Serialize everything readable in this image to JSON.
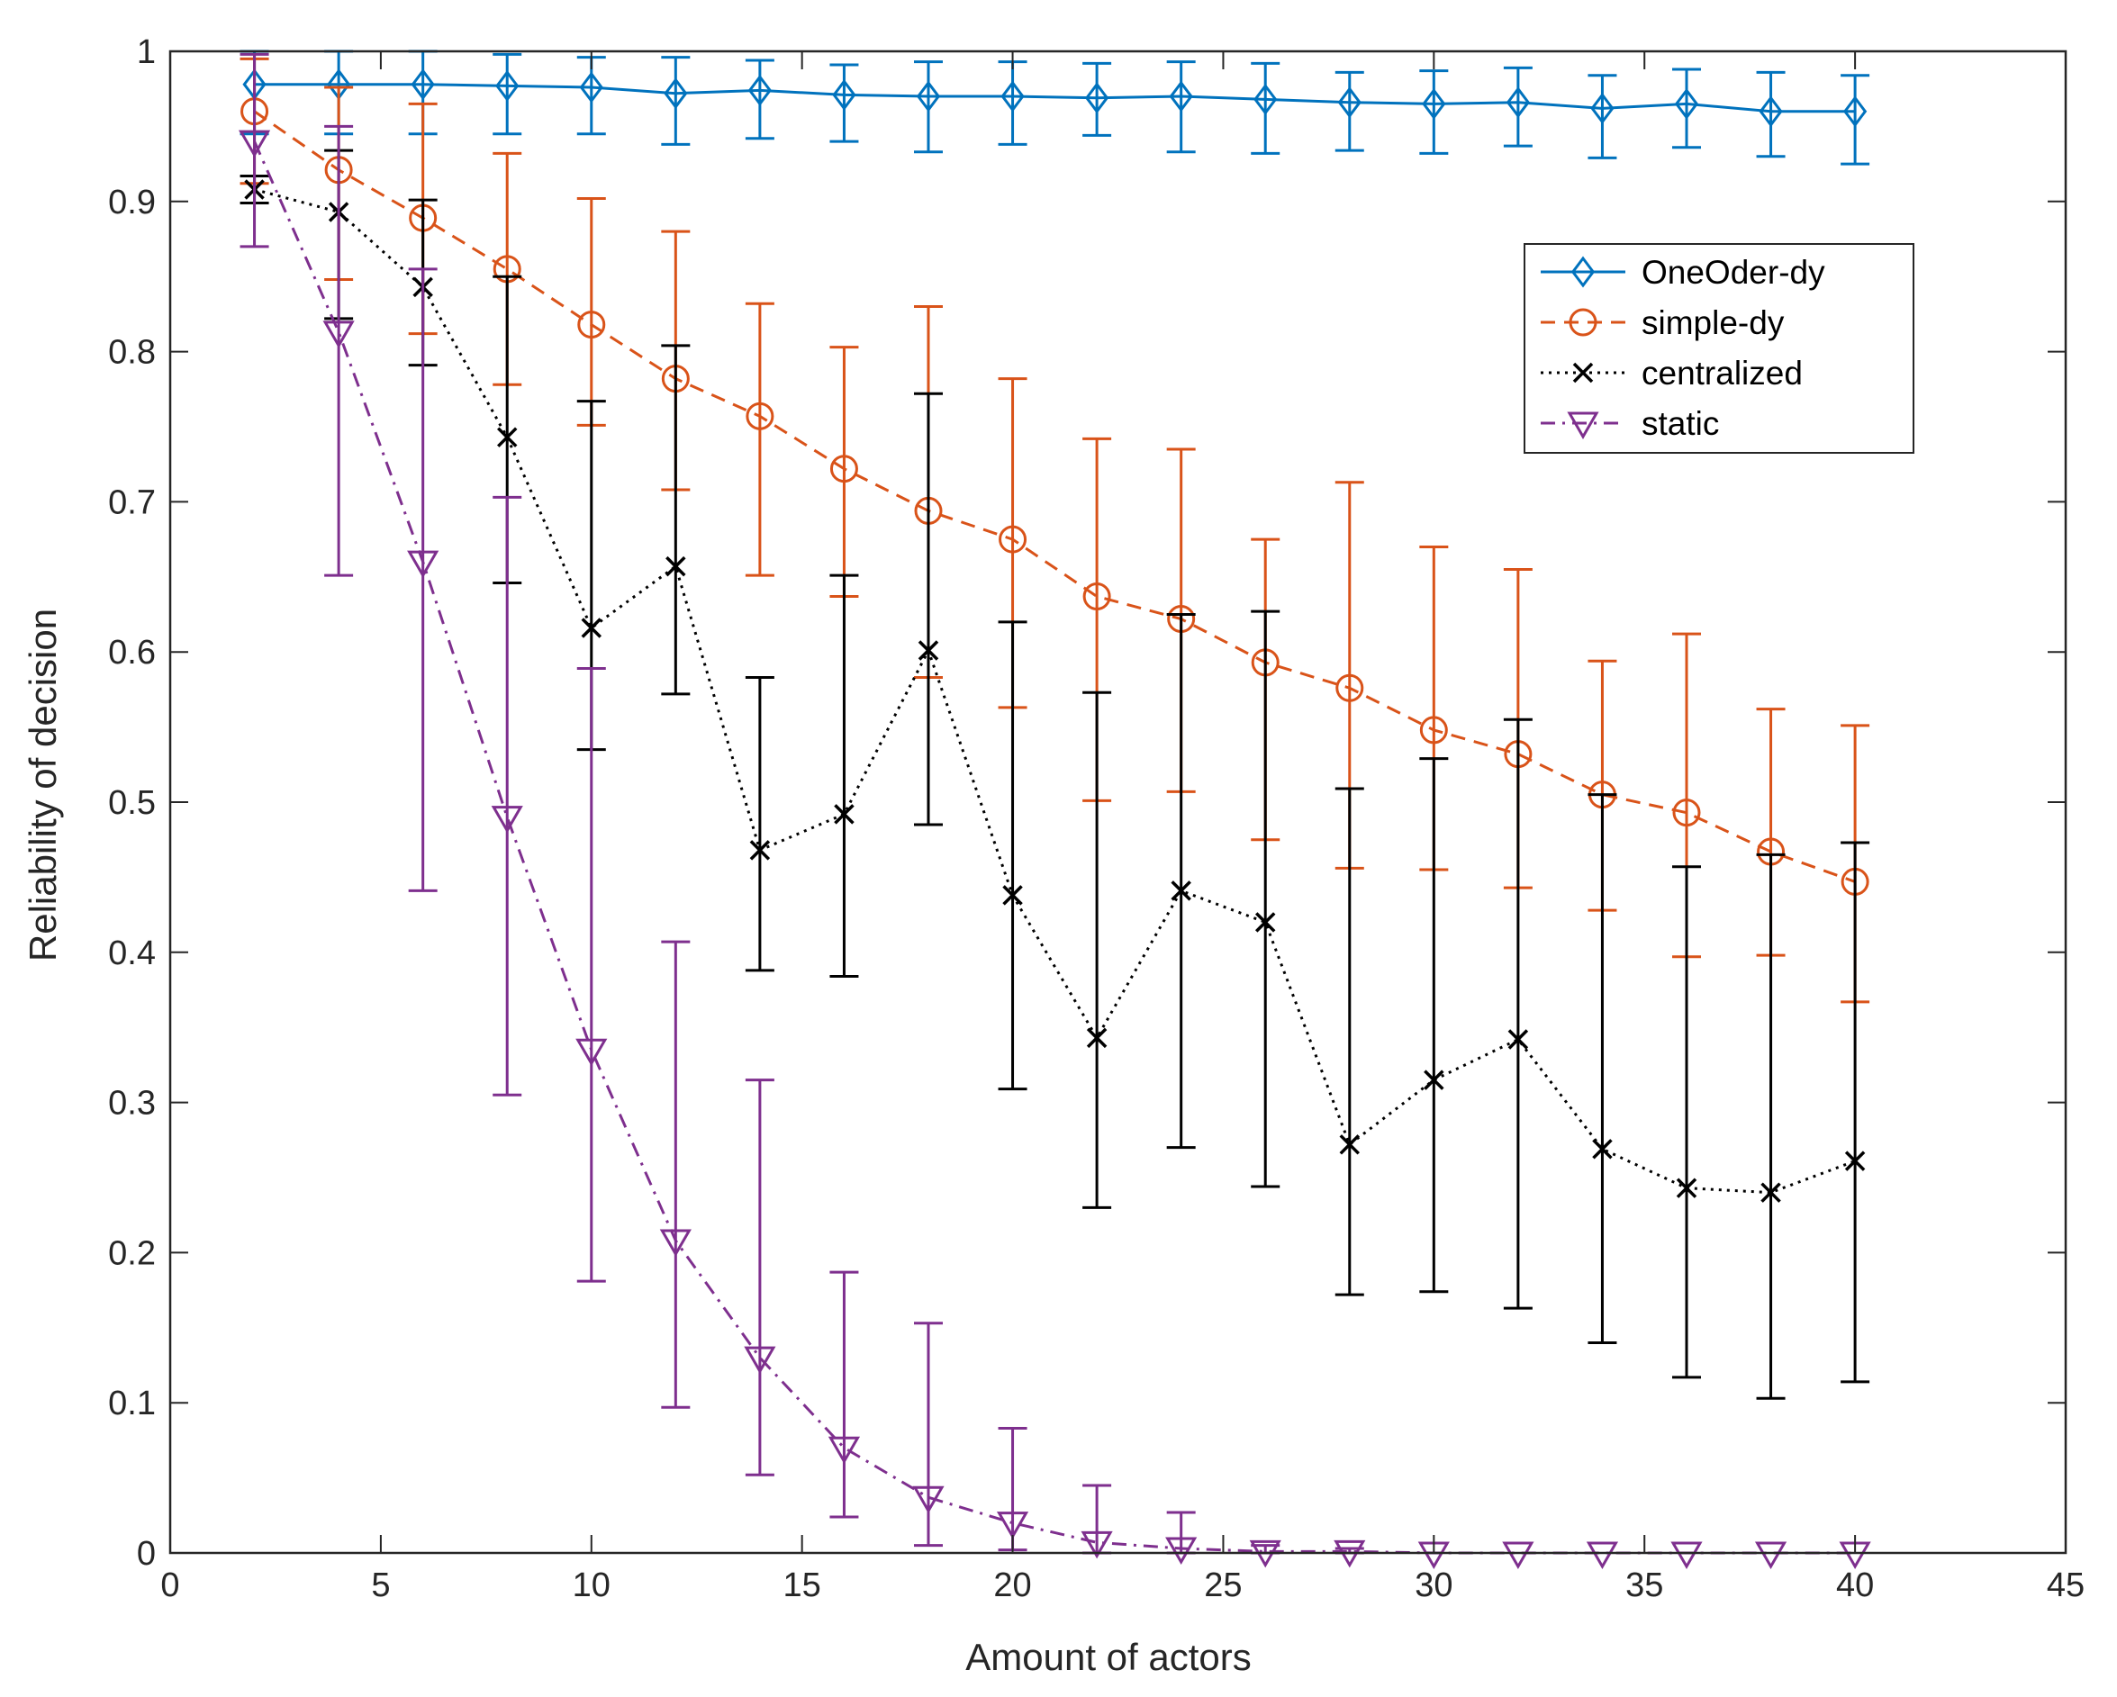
{
  "chart_data": {
    "type": "line",
    "title": "",
    "xlabel": "Amount of actors",
    "ylabel": "Reliability of decision",
    "xlim": [
      0,
      45
    ],
    "ylim": [
      0,
      1
    ],
    "xticks": [
      0,
      5,
      10,
      15,
      20,
      25,
      30,
      35,
      40,
      45
    ],
    "yticks": [
      0,
      0.1,
      0.2,
      0.3,
      0.4,
      0.5,
      0.6,
      0.7,
      0.8,
      0.9,
      1
    ],
    "xtick_labels": [
      "0",
      "5",
      "10",
      "15",
      "20",
      "25",
      "30",
      "35",
      "40",
      "45"
    ],
    "ytick_labels": [
      "0",
      "0.1",
      "0.2",
      "0.3",
      "0.4",
      "0.5",
      "0.6",
      "0.7",
      "0.8",
      "0.9",
      "1"
    ],
    "grid": false,
    "legend_position": "top-right",
    "x": [
      2,
      4,
      6,
      8,
      10,
      12,
      14,
      16,
      18,
      20,
      22,
      24,
      26,
      28,
      30,
      32,
      34,
      36,
      38,
      40
    ],
    "series": [
      {
        "name": "OneOder-dy",
        "color": "#0072BD",
        "marker": "diamond",
        "line_style": "solid",
        "values": [
          0.978,
          0.978,
          0.978,
          0.977,
          0.976,
          0.972,
          0.974,
          0.971,
          0.97,
          0.97,
          0.969,
          0.97,
          0.968,
          0.966,
          0.965,
          0.966,
          0.962,
          0.965,
          0.96,
          0.96
        ],
        "err_low": [
          0.945,
          0.945,
          0.945,
          0.945,
          0.945,
          0.938,
          0.942,
          0.94,
          0.933,
          0.938,
          0.944,
          0.933,
          0.932,
          0.934,
          0.932,
          0.937,
          0.929,
          0.936,
          0.93,
          0.925
        ],
        "err_high": [
          1.0,
          1.0,
          1.0,
          0.998,
          0.996,
          0.996,
          0.994,
          0.991,
          0.993,
          0.993,
          0.992,
          0.993,
          0.992,
          0.986,
          0.987,
          0.989,
          0.984,
          0.988,
          0.986,
          0.984
        ]
      },
      {
        "name": "simple-dy",
        "color": "#D95319",
        "marker": "circle",
        "line_style": "dashed",
        "values": [
          0.96,
          0.921,
          0.889,
          0.855,
          0.818,
          0.782,
          0.757,
          0.722,
          0.694,
          0.675,
          0.637,
          0.622,
          0.593,
          0.576,
          0.548,
          0.532,
          0.505,
          0.493,
          0.467,
          0.447
        ],
        "err_low": [
          0.912,
          0.848,
          0.812,
          0.778,
          0.751,
          0.708,
          0.651,
          0.637,
          0.583,
          0.563,
          0.501,
          0.507,
          0.475,
          0.456,
          0.455,
          0.443,
          0.428,
          0.397,
          0.398,
          0.367
        ],
        "err_high": [
          0.995,
          0.976,
          0.965,
          0.932,
          0.902,
          0.88,
          0.832,
          0.803,
          0.83,
          0.782,
          0.742,
          0.735,
          0.675,
          0.713,
          0.67,
          0.655,
          0.594,
          0.612,
          0.562,
          0.551
        ]
      },
      {
        "name": "centralized",
        "color": "#000000",
        "marker": "x",
        "line_style": "dotted",
        "values": [
          0.908,
          0.893,
          0.843,
          0.743,
          0.616,
          0.657,
          0.468,
          0.492,
          0.601,
          0.438,
          0.343,
          0.441,
          0.42,
          0.272,
          0.315,
          0.342,
          0.269,
          0.243,
          0.24,
          0.261
        ],
        "err_low": [
          0.899,
          0.822,
          0.791,
          0.646,
          0.535,
          0.572,
          0.388,
          0.384,
          0.485,
          0.309,
          0.23,
          0.27,
          0.244,
          0.172,
          0.174,
          0.163,
          0.14,
          0.117,
          0.103,
          0.114
        ],
        "err_high": [
          0.917,
          0.934,
          0.901,
          0.85,
          0.767,
          0.804,
          0.583,
          0.651,
          0.772,
          0.62,
          0.573,
          0.625,
          0.627,
          0.509,
          0.529,
          0.555,
          0.505,
          0.457,
          0.465,
          0.473
        ]
      },
      {
        "name": "static",
        "color": "#7E2F8E",
        "marker": "triangle-down",
        "line_style": "dashdot",
        "values": [
          0.94,
          0.813,
          0.66,
          0.49,
          0.335,
          0.208,
          0.13,
          0.07,
          0.037,
          0.02,
          0.007,
          0.003,
          0.001,
          0.001,
          0.0,
          0.0,
          0.0,
          0.0,
          0.0,
          0.0
        ],
        "err_low": [
          0.87,
          0.651,
          0.441,
          0.305,
          0.181,
          0.097,
          0.052,
          0.024,
          0.005,
          0.002,
          0.0,
          0.0,
          0.0,
          0.0,
          0.0,
          0.0,
          0.0,
          0.0,
          0.0,
          0.0
        ],
        "err_high": [
          0.998,
          0.95,
          0.855,
          0.703,
          0.589,
          0.407,
          0.315,
          0.187,
          0.153,
          0.083,
          0.045,
          0.027,
          0.005,
          0.003,
          0.0,
          0.0,
          0.0,
          0.0,
          0.0,
          0.0
        ]
      }
    ]
  }
}
